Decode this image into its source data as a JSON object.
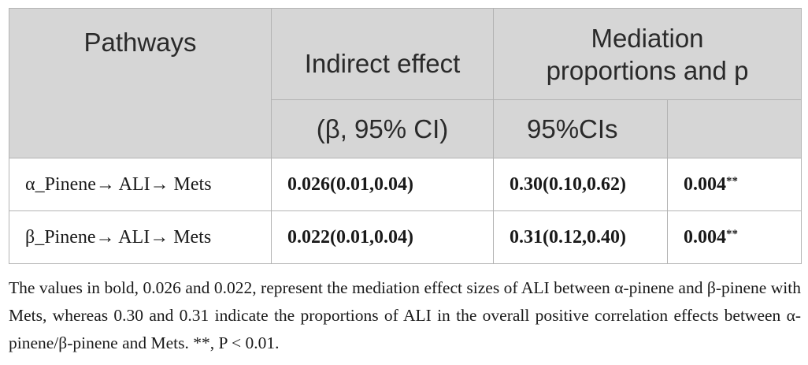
{
  "header": {
    "pathways": "Pathways",
    "indirect_effect": "Indirect effect",
    "indirect_effect_sub": "(β, 95% CI)",
    "mediation_line1": "Mediation",
    "mediation_line2": "proportions and p",
    "cis": "95%CIs"
  },
  "rows": [
    {
      "pathway": "α_Pinene→ ALI→ Mets",
      "indirect": "0.026(0.01,0.04)",
      "proportion": "0.30(0.10,0.62)",
      "p": "0.004",
      "p_mark": "**"
    },
    {
      "pathway": "β_Pinene→ ALI→ Mets",
      "indirect": "0.022(0.01,0.04)",
      "proportion": "0.31(0.12,0.40)",
      "p": "0.004",
      "p_mark": "**"
    }
  ],
  "caption": "The values in bold, 0.026 and 0.022, represent the mediation effect sizes of ALI between α-pinene and β-pinene with Mets, whereas 0.30 and 0.31 indicate the proportions of ALI in the overall positive correlation effects between α-pinene/β-pinene and Mets. **, P < 0.01.",
  "colors": {
    "header_bg": "#d6d6d6",
    "border": "#b3b3b3",
    "text": "#1a1a1a"
  }
}
